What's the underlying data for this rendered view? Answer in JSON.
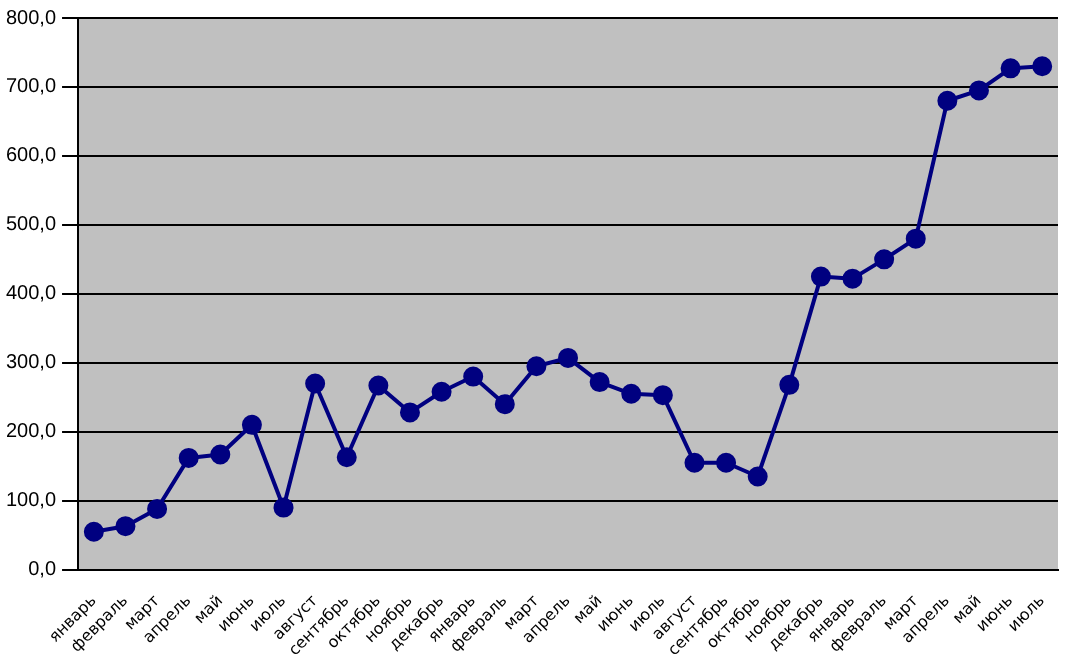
{
  "chart_data": {
    "type": "line",
    "categories": [
      "январь",
      "февраль",
      "март",
      "апрель",
      "май",
      "июнь",
      "июль",
      "август",
      "сентябрь",
      "октябрь",
      "ноябрь",
      "декабрь",
      "январь",
      "февраль",
      "март",
      "апрель",
      "май",
      "июнь",
      "июль",
      "август",
      "сентябрь",
      "октябрь",
      "ноябрь",
      "декабрь",
      "январь",
      "февраль",
      "март",
      "апрель",
      "май",
      "июнь",
      "июль"
    ],
    "series": [
      {
        "color": "#000080",
        "values": [
          55,
          63,
          88,
          162,
          167,
          210,
          90,
          270,
          163,
          267,
          228,
          258,
          280,
          240,
          295,
          307,
          272,
          255,
          253,
          155,
          155,
          135,
          268,
          425,
          422,
          450,
          480,
          680,
          695,
          727,
          730
        ]
      }
    ],
    "ylim": [
      0,
      800
    ],
    "yticks": [
      {
        "value": 0,
        "label": "0,0"
      },
      {
        "value": 100,
        "label": "100,0"
      },
      {
        "value": 200,
        "label": "200,0"
      },
      {
        "value": 300,
        "label": "300,0"
      },
      {
        "value": 400,
        "label": "400,0"
      },
      {
        "value": 500,
        "label": "500,0"
      },
      {
        "value": 600,
        "label": "600,0"
      },
      {
        "value": 700,
        "label": "700,0"
      },
      {
        "value": 800,
        "label": "800,0"
      }
    ],
    "grid": "y",
    "legend": false,
    "marker": "circle",
    "line_style": "solid"
  }
}
